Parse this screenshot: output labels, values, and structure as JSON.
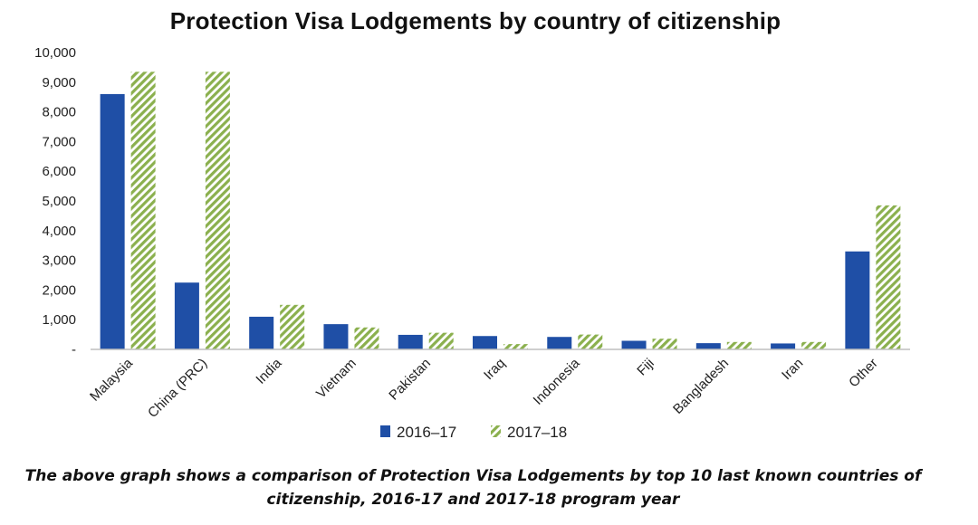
{
  "chart_data": {
    "type": "bar",
    "title": "Protection Visa Lodgements by country of citizenship",
    "categories": [
      "Malaysia",
      "China (PRC)",
      "India",
      "Vietnam",
      "Pakistan",
      "Iraq",
      "Indonesia",
      "Fiji",
      "Bangladesh",
      "Iran",
      "Other"
    ],
    "series": [
      {
        "name": "2016–17",
        "color": "#1f4fa6",
        "pattern": "solid",
        "values": [
          8600,
          2250,
          1100,
          850,
          490,
          450,
          420,
          290,
          210,
          200,
          3300
        ]
      },
      {
        "name": "2017–18",
        "color": "#8bb04e",
        "pattern": "diagonal-hatch",
        "values": [
          9350,
          9350,
          1500,
          740,
          560,
          180,
          500,
          360,
          250,
          250,
          4850
        ]
      }
    ],
    "ylim": [
      0,
      10000
    ],
    "yticks": [
      0,
      1000,
      2000,
      3000,
      4000,
      5000,
      6000,
      7000,
      8000,
      9000,
      10000
    ],
    "ytick_labels": [
      "-",
      "1,000",
      "2,000",
      "3,000",
      "4,000",
      "5,000",
      "6,000",
      "7,000",
      "8,000",
      "9,000",
      "10,000"
    ],
    "xlabel": "",
    "ylabel": "",
    "grid": false,
    "legend_position": "bottom"
  },
  "caption": "The above graph shows a comparison of Protection Visa Lodgements by top 10 last known countries of citizenship, 2016-17 and 2017-18 program year"
}
